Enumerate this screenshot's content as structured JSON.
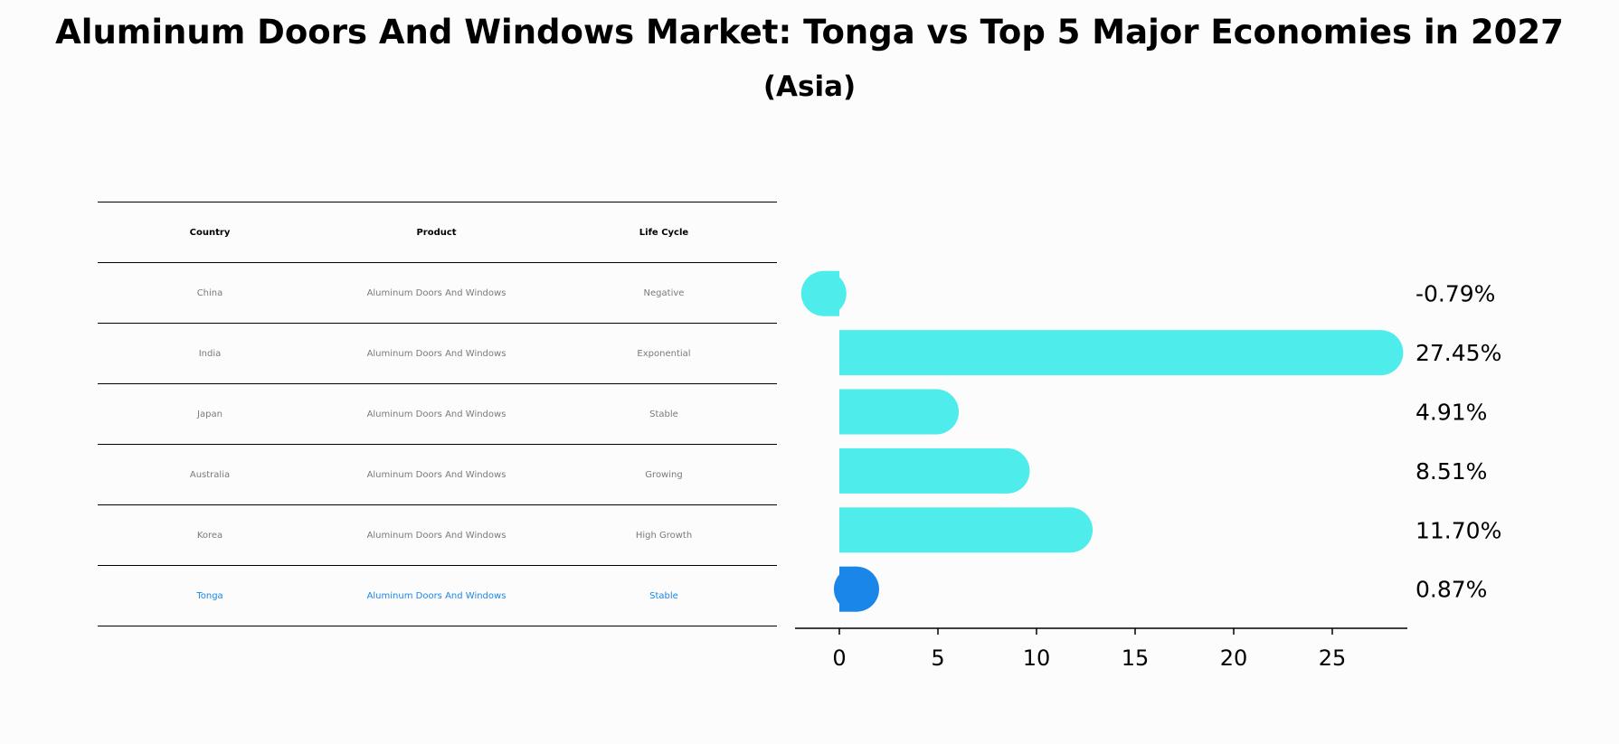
{
  "title": "Aluminum Doors And Windows Market: Tonga vs Top 5 Major Economies in 2027",
  "subtitle": "(Asia)",
  "table": {
    "headers": [
      "Country",
      "Product",
      "Life Cycle"
    ],
    "rows": [
      {
        "country": "China",
        "product": "Aluminum Doors And Windows",
        "life_cycle": "Negative"
      },
      {
        "country": "India",
        "product": "Aluminum Doors And Windows",
        "life_cycle": "Exponential"
      },
      {
        "country": "Japan",
        "product": "Aluminum Doors And Windows",
        "life_cycle": "Stable"
      },
      {
        "country": "Australia",
        "product": "Aluminum Doors And Windows",
        "life_cycle": "Growing"
      },
      {
        "country": "Korea",
        "product": "Aluminum Doors And Windows",
        "life_cycle": "High Growth"
      },
      {
        "country": "Tonga",
        "product": "Aluminum Doors And Windows",
        "life_cycle": "Stable"
      }
    ]
  },
  "colors": {
    "bar": "#4eeceb",
    "highlight": "#1a86e8"
  },
  "chart_data": {
    "type": "bar",
    "orientation": "horizontal",
    "categories": [
      "China",
      "India",
      "Japan",
      "Australia",
      "Korea",
      "Tonga"
    ],
    "values": [
      -0.79,
      27.45,
      4.91,
      8.51,
      11.7,
      0.87
    ],
    "value_labels": [
      "-0.79%",
      "27.45%",
      "4.91%",
      "8.51%",
      "11.70%",
      "0.87%"
    ],
    "highlight_category": "Tonga",
    "xlim": [
      -2.3,
      28.8
    ],
    "xticks": [
      0,
      5,
      10,
      15,
      20,
      25
    ],
    "grid": false,
    "xlabel": "",
    "ylabel": ""
  }
}
